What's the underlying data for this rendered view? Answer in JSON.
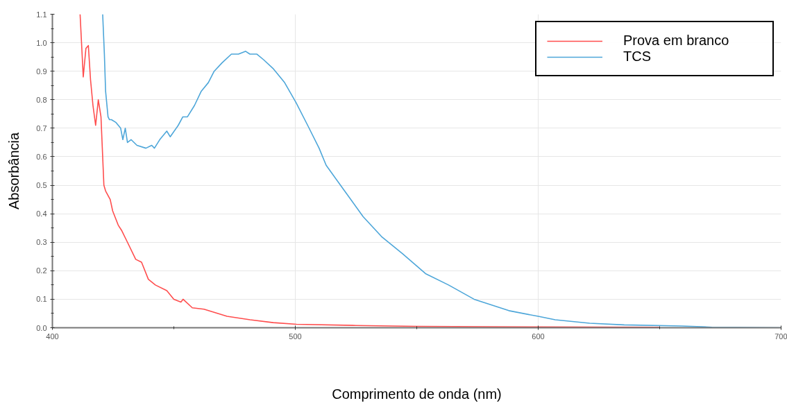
{
  "chart_data": {
    "type": "line",
    "xlabel": "Comprimento de onda (nm)",
    "ylabel": "Absorbância",
    "xlim": [
      400,
      700
    ],
    "ylim": [
      0,
      1.1
    ],
    "xticks": [
      400,
      {
        "value": 450,
        "label": null
      },
      500,
      {
        "value": 550,
        "label": null
      },
      600,
      {
        "value": 650,
        "label": null
      },
      700
    ],
    "yticks": [
      {
        "value": 0,
        "label": "0.0"
      },
      {
        "value": 0.05,
        "label": null
      },
      {
        "value": 0.1,
        "label": "0.1"
      },
      {
        "value": 0.15,
        "label": null
      },
      {
        "value": 0.2,
        "label": "0.2"
      },
      {
        "value": 0.25,
        "label": null
      },
      {
        "value": 0.3,
        "label": "0.3"
      },
      {
        "value": 0.35,
        "label": null
      },
      {
        "value": 0.4,
        "label": "0.4"
      },
      {
        "value": 0.45,
        "label": null
      },
      {
        "value": 0.5,
        "label": "0.5"
      },
      {
        "value": 0.55,
        "label": null
      },
      {
        "value": 0.6,
        "label": "0.6"
      },
      {
        "value": 0.65,
        "label": null
      },
      {
        "value": 0.7,
        "label": "0.7"
      },
      {
        "value": 0.75,
        "label": null
      },
      {
        "value": 0.8,
        "label": "0.8"
      },
      {
        "value": 0.85,
        "label": null
      },
      {
        "value": 0.9,
        "label": "0.9"
      },
      {
        "value": 0.95,
        "label": null
      },
      {
        "value": 1.0,
        "label": "1.0"
      },
      {
        "value": 1.05,
        "label": null
      },
      {
        "value": 1.1,
        "label": "1.1"
      }
    ],
    "grid": true,
    "legend": "top right",
    "line_style": "solid",
    "series": [
      {
        "name": "Prova em branco",
        "color": "#ff4d4d",
        "x": [
          411.4,
          412.7,
          413.8,
          414.8,
          415.7,
          416.7,
          417.8,
          418.9,
          420.0,
          421.2,
          421.9,
          423.8,
          424.8,
          427.1,
          428.6,
          430.9,
          434.3,
          436.7,
          439.5,
          442.4,
          447.1,
          450.0,
          452.9,
          453.8,
          457.6,
          462.4,
          471.9,
          481.4,
          490.9,
          500.5,
          525,
          550,
          600,
          650
        ],
        "values": [
          1.1,
          0.88,
          0.98,
          0.99,
          0.87,
          0.78,
          0.71,
          0.8,
          0.74,
          0.5,
          0.48,
          0.45,
          0.41,
          0.36,
          0.34,
          0.3,
          0.24,
          0.23,
          0.17,
          0.15,
          0.13,
          0.1,
          0.09,
          0.1,
          0.07,
          0.065,
          0.04,
          0.028,
          0.018,
          0.012,
          0.008,
          0.005,
          0.003,
          0.002
        ]
      },
      {
        "name": "TCS",
        "color": "#4da6d9",
        "x": [
          420.7,
          421.4,
          421.9,
          422.9,
          423.5,
          424.3,
          426.2,
          428.1,
          429.0,
          430.0,
          430.9,
          432.4,
          434.8,
          438.5,
          440.9,
          442.0,
          444.2,
          447.1,
          448.5,
          451.8,
          453.7,
          455.6,
          458.5,
          461.3,
          464.2,
          466.6,
          469.9,
          473.7,
          476.6,
          479.5,
          481.3,
          484.2,
          487.0,
          490.8,
          495.6,
          500.3,
          505.1,
          509.8,
          512.7,
          520.3,
          527.9,
          535.5,
          544.1,
          553.6,
          563.1,
          573.6,
          587.9,
          600,
          607,
          621.2,
          635.4,
          659.2,
          671.5,
          700
        ],
        "values": [
          1.1,
          0.96,
          0.83,
          0.74,
          0.73,
          0.73,
          0.72,
          0.7,
          0.66,
          0.7,
          0.65,
          0.66,
          0.64,
          0.63,
          0.64,
          0.63,
          0.66,
          0.69,
          0.67,
          0.71,
          0.74,
          0.74,
          0.78,
          0.83,
          0.86,
          0.9,
          0.93,
          0.96,
          0.96,
          0.97,
          0.96,
          0.96,
          0.94,
          0.91,
          0.86,
          0.79,
          0.71,
          0.63,
          0.57,
          0.48,
          0.39,
          0.32,
          0.26,
          0.19,
          0.15,
          0.1,
          0.06,
          0.04,
          0.028,
          0.016,
          0.01,
          0.006,
          0.002,
          0.0
        ]
      }
    ]
  }
}
